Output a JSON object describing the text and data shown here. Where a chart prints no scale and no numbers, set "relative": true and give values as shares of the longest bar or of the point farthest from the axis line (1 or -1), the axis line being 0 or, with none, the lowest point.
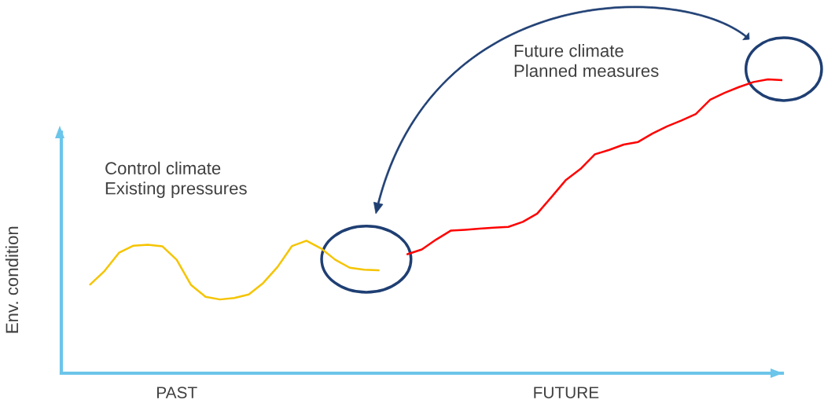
{
  "chart_data": {
    "type": "line",
    "relative": true,
    "ylabel": "Env. condition",
    "categories": [
      null,
      null,
      null,
      null,
      null,
      null,
      null,
      null,
      "PAST",
      null,
      null,
      null,
      null,
      null,
      null,
      null,
      null,
      null,
      null,
      null,
      null,
      null,
      null,
      null,
      null,
      null,
      null,
      null,
      null,
      null,
      null,
      null,
      null,
      null,
      null,
      "FUTURE",
      null,
      null,
      null,
      null,
      null,
      null,
      null,
      null,
      null,
      null,
      null,
      null,
      null,
      null,
      null
    ],
    "annotations": [
      "Control climate\nExisting pressures",
      "Future climate\nPlanned measures"
    ],
    "series": [
      {
        "color": "#f5c400",
        "values": [
          null,
          null,
          0.302,
          0.348,
          0.41,
          0.434,
          0.437,
          0.432,
          0.386,
          0.3,
          0.26,
          0.251,
          0.256,
          0.268,
          0.307,
          0.362,
          0.433,
          0.451,
          0.425,
          0.386,
          0.359,
          0.352,
          0.35,
          null,
          null,
          null,
          null,
          null,
          null,
          null,
          null,
          null,
          null,
          null,
          null,
          null,
          null,
          null,
          null,
          null,
          null,
          null,
          null,
          null,
          null,
          null,
          null,
          null,
          null,
          null,
          null
        ]
      },
      {
        "color": "#ff0000",
        "values": [
          null,
          null,
          null,
          null,
          null,
          null,
          null,
          null,
          null,
          null,
          null,
          null,
          null,
          null,
          null,
          null,
          null,
          null,
          null,
          null,
          null,
          null,
          null,
          null,
          0.405,
          0.421,
          0.455,
          0.485,
          0.488,
          0.492,
          0.495,
          0.498,
          0.515,
          0.543,
          0.6,
          0.658,
          0.695,
          0.745,
          0.76,
          0.778,
          0.787,
          0.816,
          0.84,
          0.86,
          0.882,
          0.931,
          0.954,
          0.974,
          0.991,
          1.0,
          0.997
        ]
      }
    ]
  }
}
